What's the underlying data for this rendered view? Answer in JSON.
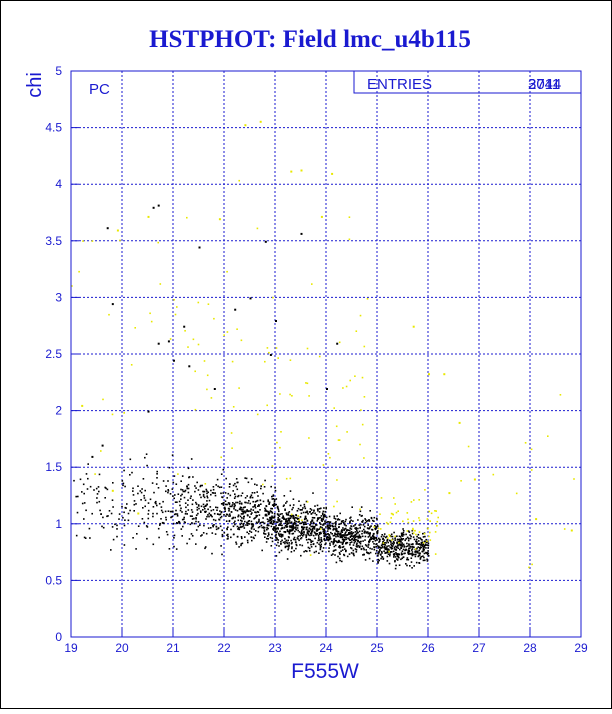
{
  "colors": {
    "background": "#ffffff",
    "frame_border": "#000000",
    "axis": "#1a1ad0",
    "title": "#1a1ad0",
    "point_primary": "#000000",
    "point_secondary": "#e8e800"
  },
  "chart_data": {
    "type": "scatter",
    "title": "HSTPHOT: Field lmc_u4b115",
    "xlabel": "F555W",
    "ylabel": "chi",
    "xlim": [
      19,
      29
    ],
    "ylim": [
      0,
      5
    ],
    "x_ticks": [
      "19",
      "20",
      "21",
      "22",
      "23",
      "24",
      "25",
      "26",
      "27",
      "28",
      "29"
    ],
    "y_ticks": [
      "0",
      "0.5",
      "1",
      "1.5",
      "2",
      "2.5",
      "3",
      "3.5",
      "4",
      "4.5",
      "5"
    ],
    "grid": true,
    "panel_label": "PC",
    "stats_box": {
      "label": "ENTRIES",
      "values": [
        "2044",
        "3711"
      ],
      "placement": "top-right"
    },
    "series": [
      {
        "color": "#000000",
        "points_count": 2044,
        "density_bins": [
          {
            "x_range": [
              19,
              20
            ],
            "y_mean": 1.15,
            "y_spread": 0.28,
            "count": 60
          },
          {
            "x_range": [
              20,
              21
            ],
            "y_mean": 1.2,
            "y_spread": 0.3,
            "count": 110
          },
          {
            "x_range": [
              21,
              22
            ],
            "y_mean": 1.15,
            "y_spread": 0.27,
            "count": 220
          },
          {
            "x_range": [
              22,
              23
            ],
            "y_mean": 1.08,
            "y_spread": 0.22,
            "count": 360
          },
          {
            "x_range": [
              23,
              24
            ],
            "y_mean": 0.98,
            "y_spread": 0.18,
            "count": 480
          },
          {
            "x_range": [
              24,
              25
            ],
            "y_mean": 0.9,
            "y_spread": 0.15,
            "count": 440
          },
          {
            "x_range": [
              25,
              26
            ],
            "y_mean": 0.8,
            "y_spread": 0.12,
            "count": 374
          }
        ],
        "outliers": [
          [
            19.7,
            3.62
          ],
          [
            20.6,
            3.8
          ],
          [
            20.7,
            3.82
          ],
          [
            21.5,
            3.45
          ],
          [
            22.8,
            3.5
          ],
          [
            23.5,
            3.57
          ],
          [
            19.8,
            2.95
          ],
          [
            20.7,
            2.6
          ],
          [
            20.9,
            2.62
          ],
          [
            21.2,
            2.75
          ],
          [
            22.2,
            2.9
          ],
          [
            22.5,
            3.0
          ],
          [
            23.0,
            2.8
          ],
          [
            24.0,
            2.2
          ],
          [
            24.2,
            2.6
          ],
          [
            19.4,
            1.6
          ],
          [
            19.6,
            1.7
          ],
          [
            20.5,
            2.0
          ],
          [
            21.0,
            2.45
          ],
          [
            21.3,
            2.4
          ],
          [
            21.8,
            2.2
          ],
          [
            22.9,
            2.5
          ]
        ]
      },
      {
        "color": "#e8e800",
        "points_count": 1667,
        "density_bins": [
          {
            "x_range": [
              19,
              21
            ],
            "y_mean": 2.6,
            "y_spread": 0.9,
            "count": 18
          },
          {
            "x_range": [
              21,
              23
            ],
            "y_mean": 2.4,
            "y_spread": 1.0,
            "count": 40
          },
          {
            "x_range": [
              23,
              25
            ],
            "y_mean": 2.0,
            "y_spread": 1.0,
            "count": 55
          },
          {
            "x_range": [
              25,
              26.2
            ],
            "y_mean": 1.0,
            "y_spread": 0.25,
            "count": 60
          },
          {
            "x_range": [
              26,
              29
            ],
            "y_mean": 1.5,
            "y_spread": 0.8,
            "count": 14
          }
        ],
        "outliers": [
          [
            22.4,
            4.53
          ],
          [
            22.7,
            4.56
          ],
          [
            23.3,
            4.12
          ],
          [
            23.5,
            4.13
          ],
          [
            24.1,
            4.1
          ],
          [
            23.9,
            3.72
          ],
          [
            20.5,
            3.72
          ],
          [
            21.9,
            3.7
          ],
          [
            19.9,
            3.6
          ],
          [
            25.7,
            2.75
          ],
          [
            26.0,
            2.33
          ],
          [
            26.3,
            2.33
          ],
          [
            26.6,
            1.9
          ],
          [
            26.4,
            1.28
          ],
          [
            26.9,
            1.4
          ],
          [
            28.1,
            1.05
          ],
          [
            28.8,
            0.95
          ],
          [
            20.3,
            1.1
          ],
          [
            19.8,
            1.3
          ],
          [
            19.2,
            2.05
          ]
        ]
      }
    ]
  }
}
